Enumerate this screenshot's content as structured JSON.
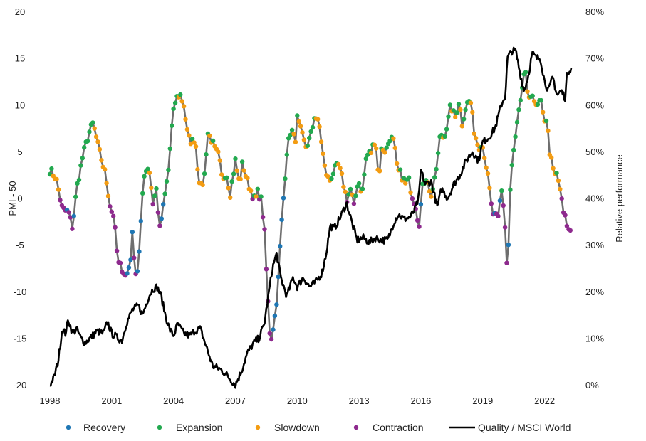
{
  "chart_data": {
    "type": "line",
    "title": "",
    "xlabel": "",
    "ylabel_left": "PMI - 50",
    "ylabel_right": "Relative performance",
    "x_range": [
      1998,
      2023.5
    ],
    "ylim_left": [
      -20,
      20
    ],
    "ylim_right": [
      0,
      80
    ],
    "x_ticks": [
      1998,
      2001,
      2004,
      2007,
      2010,
      2013,
      2016,
      2019,
      2022
    ],
    "x_tick_labels": [
      "1998",
      "2001",
      "2004",
      "2007",
      "2010",
      "2013",
      "2016",
      "2019",
      "2022"
    ],
    "y_left_ticks": [
      -20,
      -15,
      -10,
      -5,
      0,
      5,
      10,
      15,
      20
    ],
    "y_left_tick_labels": [
      "-20",
      "-15",
      "-10",
      "-5",
      "0",
      "5",
      "10",
      "15",
      "20"
    ],
    "y_right_ticks": [
      0,
      10,
      20,
      30,
      40,
      50,
      60,
      70,
      80
    ],
    "y_right_tick_labels": [
      "0%",
      "10%",
      "20%",
      "30%",
      "40%",
      "50%",
      "60%",
      "70%",
      "80%"
    ],
    "phase_colors": {
      "recovery": "#1f77b4",
      "expansion": "#22a94f",
      "slowdown": "#f39c12",
      "contraction": "#8e2a8e"
    },
    "pmi_line_color": "#6e6e6e",
    "relative_line_color": "#000000",
    "legend": [
      {
        "key": "recovery",
        "label": "Recovery",
        "kind": "marker"
      },
      {
        "key": "expansion",
        "label": "Expansion",
        "kind": "marker"
      },
      {
        "key": "slowdown",
        "label": "Slowdown",
        "kind": "marker"
      },
      {
        "key": "contraction",
        "label": "Contraction",
        "kind": "marker"
      },
      {
        "key": "relative",
        "label": "Quality / MSCI World",
        "kind": "line"
      }
    ],
    "pmi_keyframes": [
      [
        1998.0,
        3.0
      ],
      [
        1998.3,
        2.2
      ],
      [
        1998.6,
        -1.2
      ],
      [
        1998.9,
        -1.5
      ],
      [
        1999.1,
        -3.2
      ],
      [
        1999.3,
        1.0
      ],
      [
        1999.6,
        4.5
      ],
      [
        1999.9,
        7.0
      ],
      [
        2000.1,
        8.0
      ],
      [
        2000.4,
        5.0
      ],
      [
        2000.7,
        2.5
      ],
      [
        2000.95,
        -1.2
      ],
      [
        2001.1,
        -1.8
      ],
      [
        2001.3,
        -7.0
      ],
      [
        2001.5,
        -7.5
      ],
      [
        2001.7,
        -8.5
      ],
      [
        2001.9,
        -6.8
      ],
      [
        2002.0,
        -4.0
      ],
      [
        2002.2,
        -8.8
      ],
      [
        2002.35,
        -5.5
      ],
      [
        2002.55,
        2.5
      ],
      [
        2002.8,
        3.5
      ],
      [
        2003.0,
        -0.5
      ],
      [
        2003.2,
        1.2
      ],
      [
        2003.3,
        -3.8
      ],
      [
        2003.5,
        -1.0
      ],
      [
        2003.75,
        3.0
      ],
      [
        2003.95,
        8.5
      ],
      [
        2004.1,
        10.5
      ],
      [
        2004.3,
        11.2
      ],
      [
        2004.5,
        10.0
      ],
      [
        2004.7,
        6.5
      ],
      [
        2004.9,
        6.0
      ],
      [
        2005.05,
        6.5
      ],
      [
        2005.2,
        2.5
      ],
      [
        2005.35,
        1.0
      ],
      [
        2005.5,
        2.5
      ],
      [
        2005.65,
        7.0
      ],
      [
        2005.85,
        6.2
      ],
      [
        2006.0,
        5.2
      ],
      [
        2006.2,
        4.5
      ],
      [
        2006.35,
        2.0
      ],
      [
        2006.55,
        2.8
      ],
      [
        2006.75,
        0.5
      ],
      [
        2007.0,
        4.0
      ],
      [
        2007.2,
        1.5
      ],
      [
        2007.35,
        3.8
      ],
      [
        2007.55,
        2.0
      ],
      [
        2007.75,
        0.8
      ],
      [
        2007.95,
        -0.3
      ],
      [
        2008.1,
        0.7
      ],
      [
        2008.25,
        -0.2
      ],
      [
        2008.4,
        -3.0
      ],
      [
        2008.55,
        -10.0
      ],
      [
        2008.7,
        -15.5
      ],
      [
        2008.9,
        -13.0
      ],
      [
        2009.05,
        -10.0
      ],
      [
        2009.2,
        -4.0
      ],
      [
        2009.35,
        0.5
      ],
      [
        2009.5,
        5.0
      ],
      [
        2009.7,
        7.5
      ],
      [
        2009.9,
        6.0
      ],
      [
        2010.0,
        8.5
      ],
      [
        2010.2,
        7.0
      ],
      [
        2010.4,
        5.5
      ],
      [
        2010.55,
        6.0
      ],
      [
        2010.7,
        7.0
      ],
      [
        2010.85,
        9.0
      ],
      [
        2011.1,
        7.5
      ],
      [
        2011.2,
        5.5
      ],
      [
        2011.35,
        3.0
      ],
      [
        2011.55,
        1.8
      ],
      [
        2011.8,
        3.0
      ],
      [
        2012.0,
        3.5
      ],
      [
        2012.2,
        2.0
      ],
      [
        2012.4,
        -0.2
      ],
      [
        2012.6,
        1.0
      ],
      [
        2012.75,
        -1.0
      ],
      [
        2012.95,
        2.0
      ],
      [
        2013.15,
        0.5
      ],
      [
        2013.35,
        4.5
      ],
      [
        2013.6,
        5.0
      ],
      [
        2013.8,
        6.5
      ],
      [
        2013.95,
        2.0
      ],
      [
        2014.1,
        5.5
      ],
      [
        2014.3,
        5.0
      ],
      [
        2014.5,
        6.5
      ],
      [
        2014.7,
        6.0
      ],
      [
        2014.85,
        3.0
      ],
      [
        2015.05,
        2.5
      ],
      [
        2015.25,
        1.5
      ],
      [
        2015.4,
        2.0
      ],
      [
        2015.55,
        0.5
      ],
      [
        2015.75,
        -0.8
      ],
      [
        2015.9,
        -3.0
      ],
      [
        2016.1,
        1.5
      ],
      [
        2016.3,
        2.5
      ],
      [
        2016.45,
        0.0
      ],
      [
        2016.65,
        1.5
      ],
      [
        2016.8,
        4.0
      ],
      [
        2016.95,
        7.0
      ],
      [
        2017.1,
        6.5
      ],
      [
        2017.3,
        8.0
      ],
      [
        2017.45,
        10.0
      ],
      [
        2017.65,
        8.5
      ],
      [
        2017.85,
        10.5
      ],
      [
        2018.0,
        8.0
      ],
      [
        2018.2,
        10.0
      ],
      [
        2018.4,
        10.5
      ],
      [
        2018.6,
        7.0
      ],
      [
        2018.8,
        5.5
      ],
      [
        2018.95,
        6.0
      ],
      [
        2019.1,
        4.5
      ],
      [
        2019.3,
        1.5
      ],
      [
        2019.45,
        -1.5
      ],
      [
        2019.6,
        -2.0
      ],
      [
        2019.75,
        -2.2
      ],
      [
        2019.9,
        1.0
      ],
      [
        2020.05,
        -1.5
      ],
      [
        2020.2,
        -8.5
      ],
      [
        2020.35,
        2.0
      ],
      [
        2020.5,
        5.0
      ],
      [
        2020.7,
        8.5
      ],
      [
        2020.9,
        11.0
      ],
      [
        2021.05,
        14.5
      ],
      [
        2021.2,
        10.0
      ],
      [
        2021.4,
        11.5
      ],
      [
        2021.6,
        9.5
      ],
      [
        2021.8,
        10.5
      ],
      [
        2021.95,
        8.5
      ],
      [
        2022.1,
        8.5
      ],
      [
        2022.25,
        5.0
      ],
      [
        2022.45,
        2.5
      ],
      [
        2022.6,
        2.5
      ],
      [
        2022.75,
        1.0
      ],
      [
        2022.9,
        -1.5
      ],
      [
        2023.05,
        -2.5
      ],
      [
        2023.2,
        -3.8
      ],
      [
        2023.3,
        -3.0
      ]
    ],
    "relative_keyframes": [
      [
        1998.0,
        0.0
      ],
      [
        1998.2,
        1.5
      ],
      [
        1998.4,
        5.0
      ],
      [
        1998.6,
        12.0
      ],
      [
        1998.75,
        11.0
      ],
      [
        1998.9,
        14.0
      ],
      [
        1999.1,
        11.0
      ],
      [
        1999.3,
        12.0
      ],
      [
        1999.5,
        10.0
      ],
      [
        1999.7,
        9.0
      ],
      [
        1999.95,
        10.0
      ],
      [
        2000.3,
        11.5
      ],
      [
        2000.6,
        11.0
      ],
      [
        2000.8,
        13.5
      ],
      [
        2001.0,
        11.0
      ],
      [
        2001.3,
        10.0
      ],
      [
        2001.5,
        9.5
      ],
      [
        2001.7,
        13.0
      ],
      [
        2002.0,
        16.0
      ],
      [
        2002.3,
        17.0
      ],
      [
        2002.5,
        15.0
      ],
      [
        2002.8,
        19.0
      ],
      [
        2003.0,
        20.5
      ],
      [
        2003.2,
        21.0
      ],
      [
        2003.4,
        19.0
      ],
      [
        2003.6,
        15.0
      ],
      [
        2003.8,
        12.0
      ],
      [
        2004.0,
        10.5
      ],
      [
        2004.2,
        13.0
      ],
      [
        2004.5,
        11.0
      ],
      [
        2004.8,
        10.5
      ],
      [
        2005.0,
        11.5
      ],
      [
        2005.3,
        12.0
      ],
      [
        2005.6,
        8.0
      ],
      [
        2005.9,
        4.0
      ],
      [
        2006.2,
        3.5
      ],
      [
        2006.5,
        2.5
      ],
      [
        2006.8,
        1.0
      ],
      [
        2007.0,
        0.0
      ],
      [
        2007.3,
        3.0
      ],
      [
        2007.6,
        7.0
      ],
      [
        2007.9,
        9.0
      ],
      [
        2008.15,
        10.0
      ],
      [
        2008.4,
        13.0
      ],
      [
        2008.6,
        19.0
      ],
      [
        2008.8,
        25.0
      ],
      [
        2009.0,
        28.0
      ],
      [
        2009.2,
        23.0
      ],
      [
        2009.5,
        19.0
      ],
      [
        2009.8,
        23.0
      ],
      [
        2010.0,
        21.0
      ],
      [
        2010.3,
        23.0
      ],
      [
        2010.6,
        21.0
      ],
      [
        2010.9,
        22.0
      ],
      [
        2011.2,
        24.0
      ],
      [
        2011.4,
        28.0
      ],
      [
        2011.6,
        34.0
      ],
      [
        2011.8,
        33.5
      ],
      [
        2012.1,
        36.0
      ],
      [
        2012.4,
        39.0
      ],
      [
        2012.7,
        34.0
      ],
      [
        2012.9,
        31.0
      ],
      [
        2013.2,
        31.5
      ],
      [
        2013.5,
        30.5
      ],
      [
        2013.8,
        31.5
      ],
      [
        2014.1,
        31.0
      ],
      [
        2014.4,
        31.0
      ],
      [
        2014.7,
        35.0
      ],
      [
        2014.9,
        36.5
      ],
      [
        2015.2,
        35.5
      ],
      [
        2015.5,
        36.0
      ],
      [
        2015.7,
        37.5
      ],
      [
        2015.9,
        40.0
      ],
      [
        2016.0,
        46.0
      ],
      [
        2016.2,
        43.0
      ],
      [
        2016.5,
        43.5
      ],
      [
        2016.8,
        38.0
      ],
      [
        2017.0,
        42.0
      ],
      [
        2017.3,
        40.0
      ],
      [
        2017.6,
        43.0
      ],
      [
        2017.9,
        45.0
      ],
      [
        2018.2,
        48.0
      ],
      [
        2018.5,
        50.0
      ],
      [
        2018.8,
        48.0
      ],
      [
        2019.0,
        52.0
      ],
      [
        2019.3,
        53.0
      ],
      [
        2019.6,
        55.0
      ],
      [
        2019.9,
        60.0
      ],
      [
        2020.1,
        62.0
      ],
      [
        2020.2,
        70.0
      ],
      [
        2020.4,
        71.5
      ],
      [
        2020.6,
        71.5
      ],
      [
        2020.8,
        67.0
      ],
      [
        2021.0,
        63.0
      ],
      [
        2021.2,
        66.0
      ],
      [
        2021.4,
        71.0
      ],
      [
        2021.6,
        70.0
      ],
      [
        2021.8,
        70.0
      ],
      [
        2022.0,
        65.0
      ],
      [
        2022.2,
        63.0
      ],
      [
        2022.4,
        66.0
      ],
      [
        2022.6,
        62.0
      ],
      [
        2022.8,
        63.0
      ],
      [
        2023.0,
        61.5
      ],
      [
        2023.1,
        67.0
      ],
      [
        2023.3,
        68.0
      ]
    ]
  }
}
